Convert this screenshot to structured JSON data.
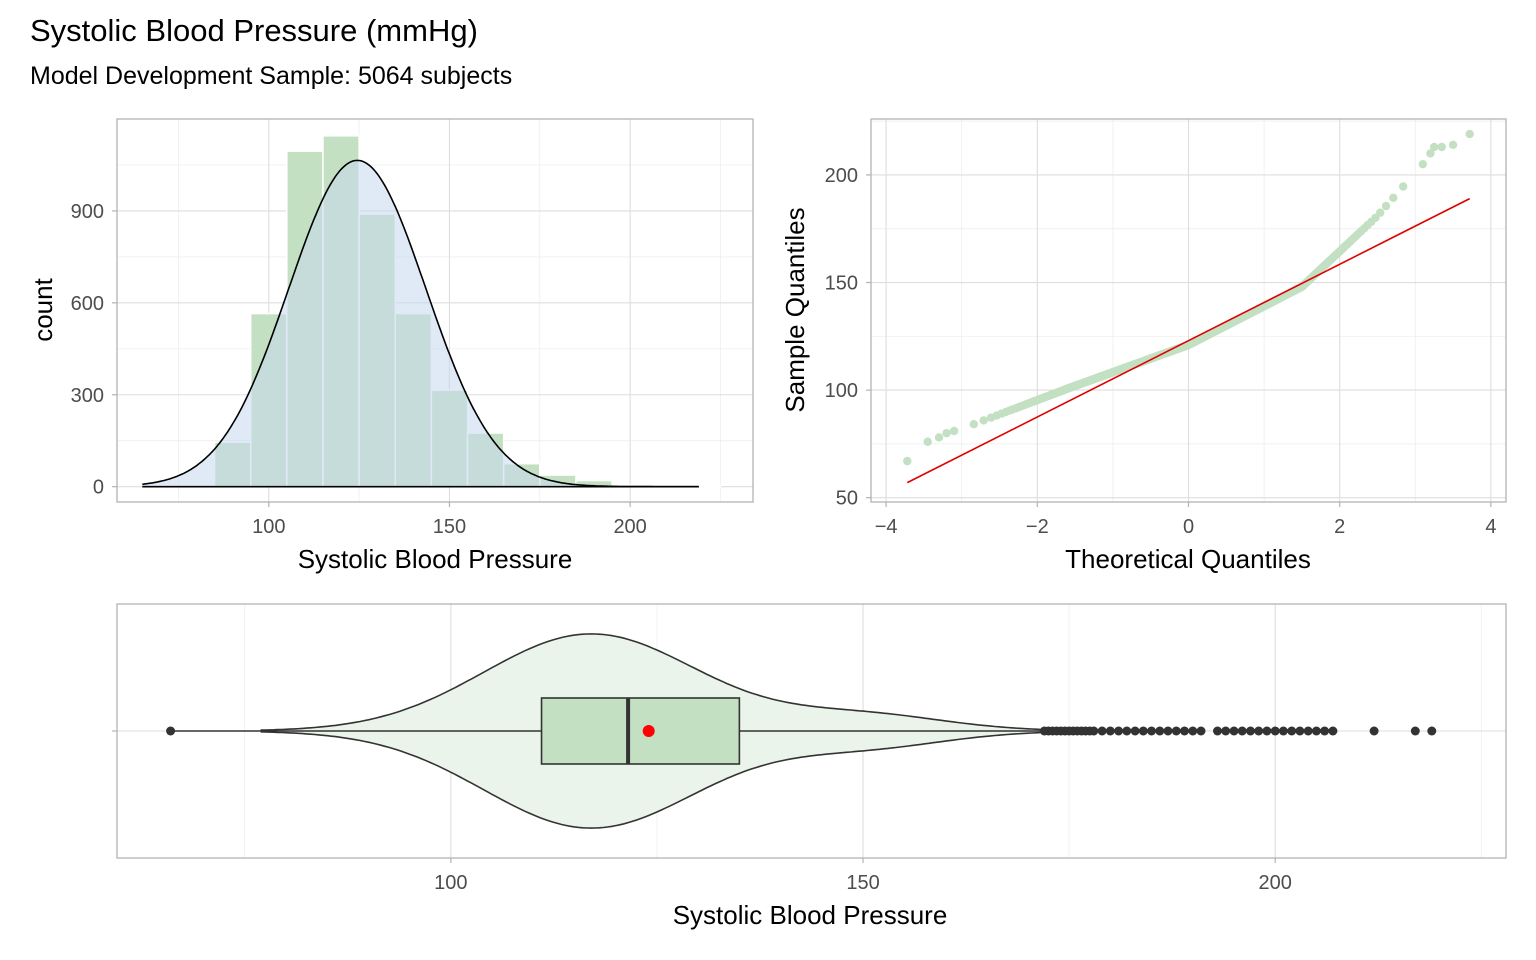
{
  "title": "Systolic Blood Pressure (mmHg)",
  "subtitle": "Model Development Sample: 5064 subjects",
  "colors": {
    "hist_fill": "#c3e0c3",
    "density_fill": "#c6d9ef",
    "qq_points": "#c3e0c3",
    "qq_line": "#e00000",
    "violin_fill": "#eaf4ea",
    "box_fill": "#c3e0c3",
    "mean_point": "#ff0000",
    "outline": "#333333"
  },
  "chart_data": [
    {
      "type": "bar",
      "name": "histogram",
      "xlabel": "Systolic Blood Pressure",
      "ylabel": "count",
      "xlim": [
        58,
        234
      ],
      "ylim": [
        -50,
        1200
      ],
      "xticks": [
        100,
        150,
        200
      ],
      "yticks": [
        0,
        300,
        600,
        900
      ],
      "bin_width": 10,
      "bins": [
        {
          "x0": 75,
          "x1": 85,
          "count": 5
        },
        {
          "x0": 85,
          "x1": 95,
          "count": 145
        },
        {
          "x0": 95,
          "x1": 105,
          "count": 565
        },
        {
          "x0": 105,
          "x1": 115,
          "count": 1095
        },
        {
          "x0": 115,
          "x1": 125,
          "count": 1145
        },
        {
          "x0": 125,
          "x1": 135,
          "count": 890
        },
        {
          "x0": 135,
          "x1": 145,
          "count": 565
        },
        {
          "x0": 145,
          "x1": 155,
          "count": 315
        },
        {
          "x0": 155,
          "x1": 165,
          "count": 175
        },
        {
          "x0": 165,
          "x1": 175,
          "count": 75
        },
        {
          "x0": 175,
          "x1": 185,
          "count": 38
        },
        {
          "x0": 185,
          "x1": 195,
          "count": 20
        },
        {
          "x0": 195,
          "x1": 205,
          "count": 5
        },
        {
          "x0": 205,
          "x1": 215,
          "count": 3
        },
        {
          "x0": 215,
          "x1": 225,
          "count": 2
        }
      ],
      "normal_curve": {
        "mean": 124.5,
        "sd": 19,
        "peak": 1065,
        "x_range": [
          65,
          219
        ]
      }
    },
    {
      "type": "scatter",
      "name": "qq-plot",
      "xlabel": "Theoretical Quantiles",
      "ylabel": "Sample Quantiles",
      "xlim": [
        -4.2,
        4.2
      ],
      "ylim": [
        48,
        226
      ],
      "xticks": [
        -4,
        -2,
        0,
        2,
        4
      ],
      "yticks": [
        50,
        100,
        150,
        200
      ],
      "reference_line": [
        [
          -3.72,
          57
        ],
        [
          3.72,
          189
        ]
      ],
      "extreme_points": [
        [
          -3.72,
          67
        ],
        [
          -3.45,
          76
        ],
        [
          -3.3,
          78
        ],
        [
          -3.2,
          80
        ],
        [
          -3.1,
          81
        ],
        [
          3.1,
          205
        ],
        [
          3.2,
          210
        ],
        [
          3.25,
          213
        ],
        [
          3.35,
          213
        ],
        [
          3.5,
          214
        ],
        [
          3.72,
          219
        ]
      ]
    },
    {
      "type": "box",
      "name": "violin-boxplot",
      "xlabel": "Systolic Blood Pressure",
      "xlim": [
        59.5,
        228
      ],
      "xticks": [
        100,
        150,
        200
      ],
      "whisker_low": 66,
      "q1": 111,
      "median": 121.5,
      "q3": 135,
      "whisker_high": 172,
      "mean": 124,
      "violin_range": [
        77,
        172
      ],
      "outliers": [
        172,
        172.5,
        173,
        173.5,
        174,
        174.5,
        175,
        175.5,
        176,
        176.5,
        177,
        177.5,
        178,
        179,
        180,
        181,
        182,
        183,
        184,
        185,
        186,
        187,
        188,
        189,
        190,
        191,
        193,
        194,
        195,
        196,
        197,
        198,
        199,
        200,
        201,
        202,
        203,
        204,
        205,
        206,
        207,
        212,
        217,
        219
      ]
    }
  ]
}
